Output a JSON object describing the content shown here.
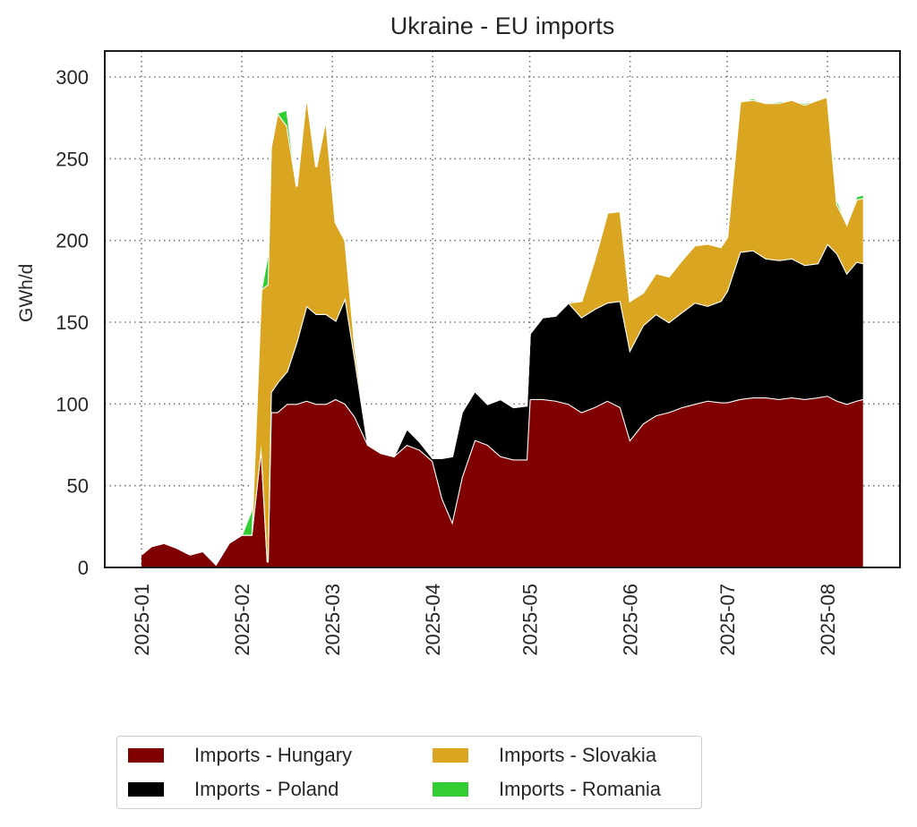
{
  "chart_data": {
    "type": "area",
    "stacked": true,
    "title": "Ukraine - EU imports",
    "xlabel": "",
    "ylabel": "GWh/d",
    "ylim": [
      0,
      315
    ],
    "yticks": [
      0,
      50,
      100,
      150,
      200,
      250,
      300
    ],
    "xticks": [
      "2025-01",
      "2025-02",
      "2025-03",
      "2025-04",
      "2025-05",
      "2025-06",
      "2025-07",
      "2025-08"
    ],
    "grid": true,
    "legend_position": "bottom",
    "x": [
      "2025-01-01",
      "2025-01-04",
      "2025-01-08",
      "2025-01-12",
      "2025-01-16",
      "2025-01-20",
      "2025-01-24",
      "2025-01-28",
      "2025-02-01",
      "2025-02-04",
      "2025-02-07",
      "2025-02-09",
      "2025-02-10",
      "2025-02-12",
      "2025-02-15",
      "2025-02-18",
      "2025-02-21",
      "2025-02-24",
      "2025-02-27",
      "2025-03-02",
      "2025-03-05",
      "2025-03-08",
      "2025-03-12",
      "2025-03-16",
      "2025-03-20",
      "2025-03-24",
      "2025-03-28",
      "2025-04-01",
      "2025-04-04",
      "2025-04-07",
      "2025-04-10",
      "2025-04-14",
      "2025-04-18",
      "2025-04-22",
      "2025-04-26",
      "2025-04-30",
      "2025-05-01",
      "2025-05-05",
      "2025-05-09",
      "2025-05-13",
      "2025-05-17",
      "2025-05-21",
      "2025-05-25",
      "2025-05-29",
      "2025-06-01",
      "2025-06-05",
      "2025-06-09",
      "2025-06-13",
      "2025-06-17",
      "2025-06-21",
      "2025-06-25",
      "2025-06-29",
      "2025-07-01",
      "2025-07-05",
      "2025-07-09",
      "2025-07-13",
      "2025-07-17",
      "2025-07-21",
      "2025-07-25",
      "2025-07-29",
      "2025-08-01",
      "2025-08-04",
      "2025-08-07",
      "2025-08-10",
      "2025-08-12"
    ],
    "series": [
      {
        "name": "Imports - Hungary",
        "color": "#800000",
        "values": [
          8,
          13,
          15,
          12,
          8,
          10,
          2,
          15,
          20,
          20,
          75,
          3,
          95,
          95,
          100,
          100,
          102,
          100,
          100,
          103,
          100,
          92,
          75,
          70,
          68,
          75,
          72,
          65,
          42,
          28,
          55,
          78,
          75,
          68,
          66,
          66,
          103,
          103,
          102,
          100,
          95,
          98,
          102,
          98,
          78,
          88,
          93,
          95,
          98,
          100,
          102,
          101,
          101,
          103,
          104,
          104,
          103,
          104,
          103,
          104,
          105,
          102,
          100,
          102,
          103
        ]
      },
      {
        "name": "Imports - Poland",
        "color": "#000000",
        "values": [
          0,
          0,
          0,
          0,
          0,
          0,
          0,
          0,
          0,
          0,
          0,
          0,
          12,
          18,
          20,
          38,
          58,
          55,
          55,
          48,
          65,
          35,
          0,
          0,
          0,
          10,
          5,
          2,
          25,
          40,
          40,
          30,
          25,
          35,
          32,
          33,
          40,
          50,
          52,
          62,
          58,
          60,
          60,
          65,
          55,
          60,
          62,
          55,
          58,
          62,
          58,
          62,
          68,
          90,
          90,
          85,
          85,
          85,
          82,
          82,
          93,
          90,
          80,
          85,
          83
        ]
      },
      {
        "name": "Imports - Slovakia",
        "color": "#DAA520",
        "values": [
          0,
          0,
          0,
          0,
          0,
          0,
          0,
          0,
          0,
          0,
          95,
          170,
          150,
          165,
          150,
          95,
          130,
          90,
          120,
          60,
          35,
          8,
          0,
          0,
          0,
          0,
          0,
          0,
          0,
          0,
          0,
          0,
          0,
          0,
          0,
          0,
          0,
          0,
          0,
          0,
          10,
          30,
          55,
          55,
          30,
          20,
          25,
          28,
          32,
          35,
          38,
          33,
          33,
          92,
          92,
          95,
          96,
          97,
          98,
          100,
          90,
          30,
          30,
          38,
          40
        ]
      },
      {
        "name": "Imports - Romania",
        "color": "#32CD32",
        "values": [
          0,
          0,
          0,
          0,
          0,
          0,
          0,
          0,
          0,
          15,
          0,
          18,
          0,
          0,
          10,
          0,
          0,
          0,
          0,
          0,
          0,
          0,
          0,
          0,
          0,
          0,
          0,
          0,
          0,
          0,
          0,
          0,
          0,
          0,
          0,
          0,
          0,
          0,
          0,
          0,
          0,
          0,
          0,
          0,
          0,
          0,
          0,
          0,
          0,
          0,
          0,
          0,
          0,
          0,
          1,
          0,
          1,
          0,
          1,
          0,
          0,
          3,
          0,
          2,
          2
        ]
      }
    ]
  },
  "legend": {
    "items": [
      {
        "label": "Imports - Hungary",
        "color": "#800000"
      },
      {
        "label": "Imports - Poland",
        "color": "#000000"
      },
      {
        "label": "Imports - Slovakia",
        "color": "#DAA520"
      },
      {
        "label": "Imports - Romania",
        "color": "#32CD32"
      }
    ]
  }
}
